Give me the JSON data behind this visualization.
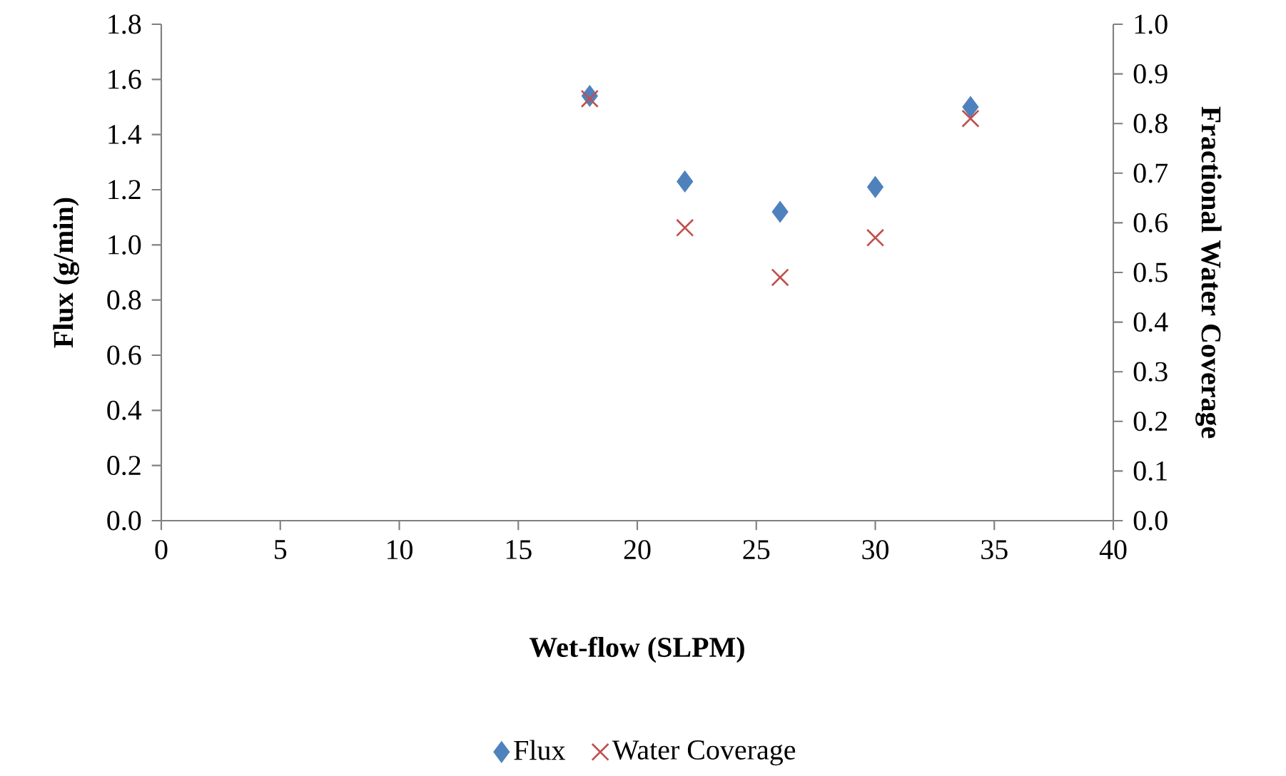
{
  "chart_data": {
    "type": "scatter",
    "xlabel": "Wet-flow (SLPM)",
    "ylabel": "Flux (g/min)",
    "y2label": "Fractional Water Coverage",
    "x": [
      18,
      22,
      26,
      30,
      34
    ],
    "series": [
      {
        "name": "Flux",
        "color": "#4f81bd",
        "marker": "diamond",
        "values": [
          1.54,
          1.23,
          1.12,
          1.21,
          1.5
        ]
      },
      {
        "name": "Water Coverage",
        "color": "#c0504d",
        "marker": "cross",
        "axis": "y2",
        "values": [
          0.85,
          0.59,
          0.49,
          0.57,
          0.81
        ]
      }
    ],
    "xlim": [
      0,
      40
    ],
    "xticks": [
      0,
      5,
      10,
      15,
      20,
      25,
      30,
      35,
      40
    ],
    "ylim": [
      0,
      1.8
    ],
    "yticks": [
      {
        "value": 0,
        "label": "0.0"
      },
      0.2,
      0.4,
      0.6,
      0.8,
      {
        "value": 1,
        "label": "1.0"
      },
      1.2,
      1.4,
      1.6,
      1.8
    ],
    "y2lim": [
      0,
      1
    ],
    "y2ticks": [
      {
        "value": 0,
        "label": "0.0"
      },
      0.1,
      0.2,
      0.3,
      0.4,
      0.5,
      0.6,
      0.7,
      0.8,
      0.9,
      {
        "value": 1,
        "label": "1.0"
      }
    ],
    "grid": false,
    "legend": "bottom"
  }
}
